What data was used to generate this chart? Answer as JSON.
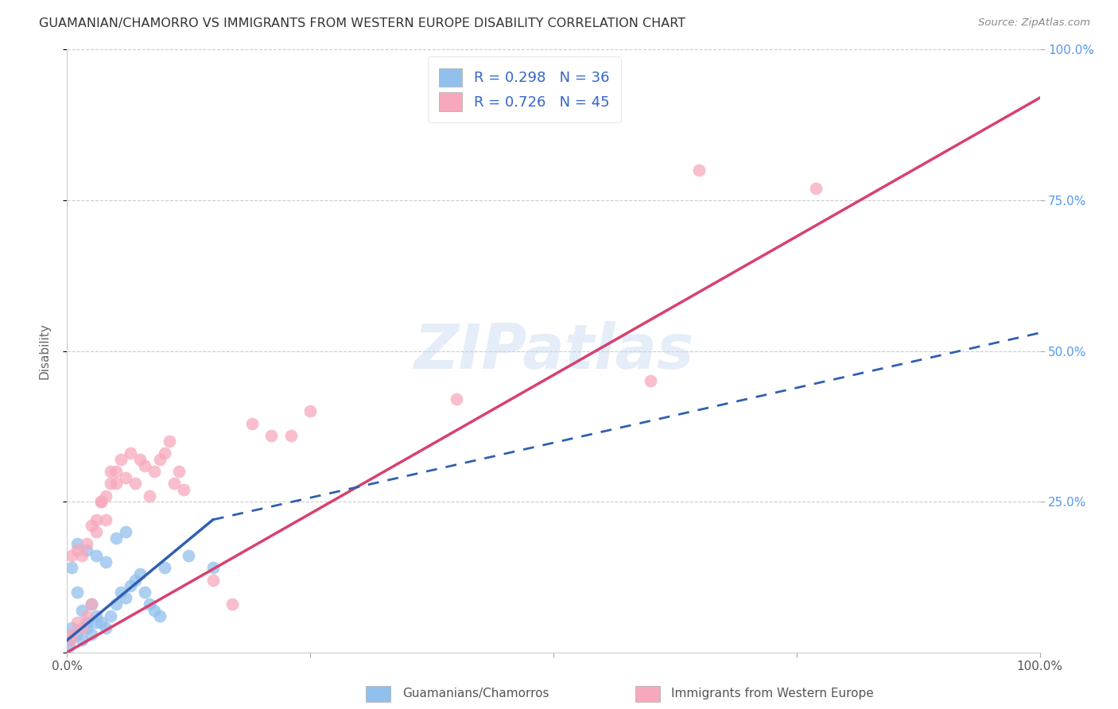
{
  "title": "GUAMANIAN/CHAMORRO VS IMMIGRANTS FROM WESTERN EUROPE DISABILITY CORRELATION CHART",
  "source": "Source: ZipAtlas.com",
  "ylabel": "Disability",
  "legend_label_blue": "Guamanians/Chamorros",
  "legend_label_pink": "Immigrants from Western Europe",
  "blue_color": "#92c0ed",
  "pink_color": "#f7a8bc",
  "blue_line_color": "#3060b0",
  "pink_line_color": "#d84070",
  "watermark_text": "ZIPatlas",
  "blue_r": "0.298",
  "blue_n": "36",
  "pink_r": "0.726",
  "pink_n": "45",
  "blue_scatter_x": [
    0.5,
    1.0,
    1.5,
    2.0,
    2.5,
    3.0,
    3.5,
    4.0,
    4.5,
    5.0,
    5.5,
    6.0,
    6.5,
    7.0,
    7.5,
    8.0,
    8.5,
    9.0,
    9.5,
    10.0,
    1.0,
    2.0,
    3.0,
    4.0,
    5.0,
    6.0,
    0.5,
    1.0,
    1.5,
    2.0,
    2.5,
    3.0,
    0.2,
    0.3,
    12.5,
    15.0
  ],
  "blue_scatter_y": [
    14,
    10,
    7,
    5,
    8,
    6,
    5,
    4,
    6,
    8,
    10,
    9,
    11,
    12,
    13,
    10,
    8,
    7,
    6,
    14,
    18,
    17,
    16,
    15,
    19,
    20,
    4,
    3,
    2,
    4,
    3,
    5,
    1,
    2,
    16,
    14
  ],
  "pink_scatter_x": [
    0.3,
    0.5,
    1.0,
    1.5,
    2.0,
    2.5,
    3.0,
    3.5,
    4.0,
    4.5,
    5.0,
    5.5,
    6.0,
    6.5,
    7.0,
    7.5,
    8.0,
    8.5,
    9.0,
    9.5,
    10.0,
    10.5,
    11.0,
    11.5,
    12.0,
    0.5,
    1.0,
    1.5,
    2.0,
    2.5,
    3.0,
    3.5,
    4.0,
    4.5,
    5.0,
    15.0,
    17.0,
    19.0,
    21.0,
    23.0,
    25.0,
    40.0,
    60.0,
    65.0,
    77.0
  ],
  "pink_scatter_y": [
    2,
    3,
    5,
    4,
    6,
    8,
    20,
    25,
    22,
    28,
    30,
    32,
    29,
    33,
    28,
    32,
    31,
    26,
    30,
    32,
    33,
    35,
    28,
    30,
    27,
    16,
    17,
    16,
    18,
    21,
    22,
    25,
    26,
    30,
    28,
    12,
    8,
    38,
    36,
    36,
    40,
    42,
    45,
    80,
    77
  ],
  "xlim": [
    0,
    100
  ],
  "ylim": [
    0,
    100
  ],
  "blue_line_x0": 0.0,
  "blue_line_y0": 2.0,
  "blue_line_x1": 15.0,
  "blue_line_y1": 22.0,
  "blue_dash_x1": 100.0,
  "blue_dash_y1": 53.0,
  "pink_line_x0": 0.0,
  "pink_line_y0": 0.0,
  "pink_line_x1": 100.0,
  "pink_line_y1": 92.0
}
